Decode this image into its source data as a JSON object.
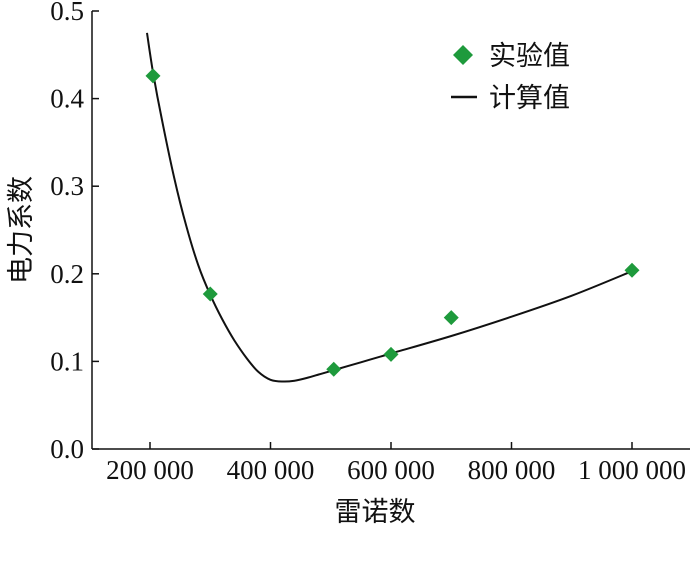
{
  "chart_data": {
    "type": "scatter",
    "xlabel": "雷诺数",
    "ylabel": "电力系数",
    "xlim": [
      100000,
      1050000
    ],
    "ylim": [
      0,
      0.5
    ],
    "x_ticks": [
      200000,
      400000,
      600000,
      800000,
      1000000
    ],
    "x_tick_labels": [
      "200 000",
      "400 000",
      "600 000",
      "800 000",
      "1 000 000"
    ],
    "y_ticks": [
      0.0,
      0.1,
      0.2,
      0.3,
      0.4,
      0.5
    ],
    "y_tick_labels": [
      "0.0",
      "0.1",
      "0.2",
      "0.3",
      "0.4",
      "0.5"
    ],
    "grid": false,
    "legend_position": "top-right",
    "series": [
      {
        "name": "实验值",
        "kind": "markers",
        "marker": "diamond",
        "color": "#1e9a3c",
        "x": [
          205000,
          300000,
          505000,
          600000,
          700000,
          1000000
        ],
        "y": [
          0.426,
          0.177,
          0.091,
          0.108,
          0.15,
          0.204
        ]
      },
      {
        "name": "计算值",
        "kind": "line",
        "color": "#111111",
        "x": [
          195000,
          205000,
          220000,
          240000,
          260000,
          280000,
          300000,
          320000,
          340000,
          360000,
          380000,
          400000,
          420000,
          440000,
          460000,
          480000,
          500000,
          550000,
          600000,
          700000,
          800000,
          900000,
          1000000
        ],
        "y": [
          0.475,
          0.43,
          0.375,
          0.31,
          0.255,
          0.21,
          0.176,
          0.148,
          0.124,
          0.104,
          0.088,
          0.079,
          0.077,
          0.078,
          0.081,
          0.085,
          0.089,
          0.099,
          0.109,
          0.129,
          0.151,
          0.175,
          0.203
        ]
      }
    ]
  }
}
